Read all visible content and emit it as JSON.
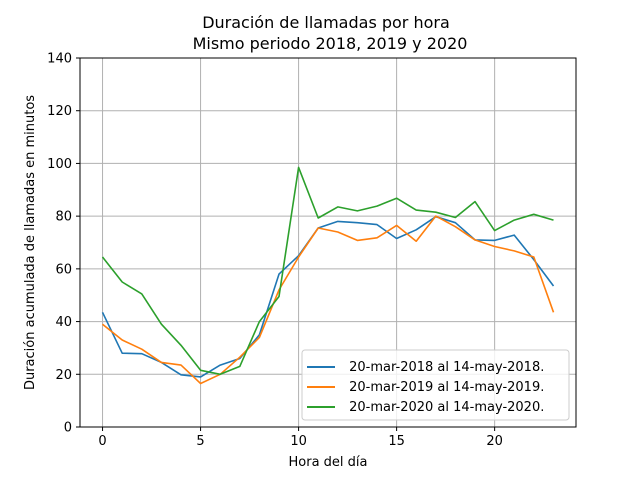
{
  "chart_data": {
    "type": "line",
    "title": "Duración de llamadas por hora",
    "subtitle": "Mismo periodo 2018, 2019 y 2020",
    "xlabel": "Hora del día",
    "ylabel": "Duración acumulada de llamadas en minutos",
    "xlim": [
      -1.15,
      24.15
    ],
    "ylim": [
      0,
      140
    ],
    "xticks": [
      0,
      5,
      10,
      15,
      20
    ],
    "yticks": [
      0,
      20,
      40,
      60,
      80,
      100,
      120,
      140
    ],
    "grid": true,
    "legend_position": "lower right",
    "x": [
      0,
      1,
      2,
      3,
      4,
      5,
      6,
      7,
      8,
      9,
      10,
      11,
      12,
      13,
      14,
      15,
      16,
      17,
      18,
      19,
      20,
      21,
      22,
      23
    ],
    "series": [
      {
        "name": " 20-mar-2018 al 14-may-2018.",
        "color": "#1f77b4",
        "values": [
          43.5,
          28,
          27.8,
          24.5,
          19.8,
          19,
          23.5,
          26,
          35,
          58,
          65,
          75.5,
          78,
          77.5,
          76.8,
          71.5,
          74.8,
          79.8,
          77.5,
          71,
          70.8,
          72.8,
          63.5,
          53.5
        ]
      },
      {
        "name": " 20-mar-2019 al 14-may-2019.",
        "color": "#ff7f0e",
        "values": [
          39,
          33,
          29.5,
          24.5,
          23.5,
          16.5,
          20,
          26.5,
          34,
          52,
          64.5,
          75.5,
          74,
          70.8,
          71.8,
          76.5,
          70.5,
          80,
          76,
          71,
          68.5,
          66.8,
          64.5,
          43.5
        ]
      },
      {
        "name": " 20-mar-2020 al 14-may-2020.",
        "color": "#2ca02c",
        "values": [
          64.5,
          55,
          50.5,
          39,
          31,
          21.5,
          20,
          23,
          40,
          49.5,
          98.5,
          79.3,
          83.5,
          82,
          83.8,
          86.8,
          82.3,
          81.5,
          79.5,
          85.5,
          74.5,
          78.5,
          80.7,
          78.5
        ]
      }
    ]
  }
}
